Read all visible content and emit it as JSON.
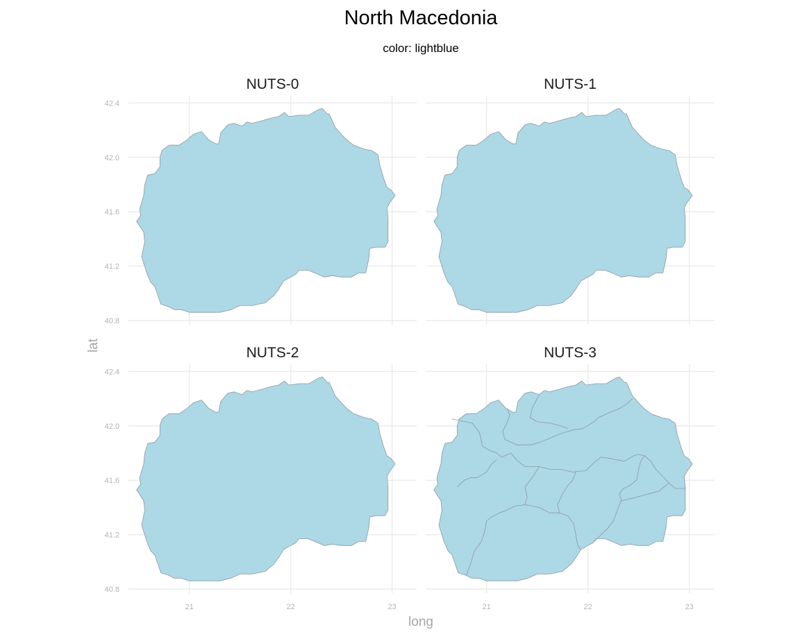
{
  "title": "North Macedonia",
  "subtitle": "color: lightblue",
  "chart_data": {
    "type": "map",
    "fill_color": "#add8e6",
    "border_color": "#8c9aa0",
    "xlabel": "long",
    "ylabel": "lat",
    "xlim": [
      20.4,
      23.1
    ],
    "ylim": [
      40.8,
      42.45
    ],
    "x_ticks": [
      {
        "value": 21,
        "label": "21"
      },
      {
        "value": 22,
        "label": "22"
      },
      {
        "value": 23,
        "label": "23"
      }
    ],
    "y_ticks": [
      {
        "value": 40.8,
        "label": "40.8"
      },
      {
        "value": 41.2,
        "label": "41.2"
      },
      {
        "value": 41.6,
        "label": "41.6"
      },
      {
        "value": 42.0,
        "label": "42.0"
      },
      {
        "value": 42.4,
        "label": "42.4"
      }
    ],
    "grid": true,
    "panels": [
      {
        "title": "NUTS-0",
        "regions": 1
      },
      {
        "title": "NUTS-1",
        "regions": 1
      },
      {
        "title": "NUTS-2",
        "regions": 1
      },
      {
        "title": "NUTS-3",
        "regions": 8
      }
    ],
    "outline": [
      [
        21.41,
        40.88
      ],
      [
        21.5,
        40.91
      ],
      [
        21.62,
        40.91
      ],
      [
        21.75,
        40.93
      ],
      [
        21.78,
        40.95
      ],
      [
        21.83,
        40.98
      ],
      [
        21.88,
        41.03
      ],
      [
        21.93,
        41.09
      ],
      [
        22.0,
        41.12
      ],
      [
        22.05,
        41.14
      ],
      [
        22.08,
        41.17
      ],
      [
        22.17,
        41.17
      ],
      [
        22.27,
        41.14
      ],
      [
        22.33,
        41.12
      ],
      [
        22.41,
        41.13
      ],
      [
        22.5,
        41.12
      ],
      [
        22.6,
        41.12
      ],
      [
        22.67,
        41.15
      ],
      [
        22.74,
        41.15
      ],
      [
        22.77,
        41.25
      ],
      [
        22.78,
        41.33
      ],
      [
        22.84,
        41.34
      ],
      [
        22.93,
        41.34
      ],
      [
        22.96,
        41.38
      ],
      [
        22.96,
        41.55
      ],
      [
        22.95,
        41.63
      ],
      [
        22.98,
        41.67
      ],
      [
        23.03,
        41.72
      ],
      [
        22.99,
        41.76
      ],
      [
        22.95,
        41.78
      ],
      [
        22.92,
        41.84
      ],
      [
        22.88,
        41.94
      ],
      [
        22.86,
        42.02
      ],
      [
        22.8,
        42.05
      ],
      [
        22.73,
        42.06
      ],
      [
        22.62,
        42.09
      ],
      [
        22.55,
        42.13
      ],
      [
        22.5,
        42.17
      ],
      [
        22.44,
        42.22
      ],
      [
        22.38,
        42.32
      ],
      [
        22.36,
        42.32
      ],
      [
        22.31,
        42.36
      ],
      [
        22.27,
        42.35
      ],
      [
        22.18,
        42.31
      ],
      [
        22.08,
        42.31
      ],
      [
        21.98,
        42.3
      ],
      [
        21.94,
        42.33
      ],
      [
        21.88,
        42.3
      ],
      [
        21.81,
        42.29
      ],
      [
        21.72,
        42.27
      ],
      [
        21.62,
        42.25
      ],
      [
        21.57,
        42.26
      ],
      [
        21.52,
        42.23
      ],
      [
        21.44,
        42.25
      ],
      [
        21.38,
        42.24
      ],
      [
        21.31,
        42.18
      ],
      [
        21.29,
        42.1
      ],
      [
        21.26,
        42.1
      ],
      [
        21.19,
        42.13
      ],
      [
        21.12,
        42.19
      ],
      [
        21.04,
        42.17
      ],
      [
        20.98,
        42.13
      ],
      [
        20.9,
        42.09
      ],
      [
        20.8,
        42.09
      ],
      [
        20.73,
        42.05
      ],
      [
        20.71,
        42.0
      ],
      [
        20.71,
        41.93
      ],
      [
        20.66,
        41.88
      ],
      [
        20.59,
        41.87
      ],
      [
        20.56,
        41.8
      ],
      [
        20.55,
        41.72
      ],
      [
        20.51,
        41.62
      ],
      [
        20.52,
        41.57
      ],
      [
        20.48,
        41.53
      ],
      [
        20.55,
        41.45
      ],
      [
        20.56,
        41.38
      ],
      [
        20.53,
        41.27
      ],
      [
        20.58,
        41.15
      ],
      [
        20.62,
        41.08
      ],
      [
        20.66,
        41.05
      ],
      [
        20.72,
        40.92
      ],
      [
        20.8,
        40.9
      ],
      [
        20.85,
        40.88
      ],
      [
        20.92,
        40.88
      ],
      [
        21.0,
        40.86
      ],
      [
        21.1,
        40.86
      ],
      [
        21.2,
        40.86
      ],
      [
        21.3,
        40.86
      ],
      [
        21.41,
        40.88
      ]
    ],
    "nuts3_internal_borders": [
      [
        [
          20.66,
          42.05
        ],
        [
          20.86,
          42.02
        ],
        [
          20.93,
          41.95
        ],
        [
          20.96,
          41.85
        ],
        [
          21.03,
          41.82
        ],
        [
          21.1,
          41.8
        ],
        [
          21.15,
          41.77
        ],
        [
          21.24,
          41.8
        ],
        [
          21.31,
          41.74
        ],
        [
          21.38,
          41.7
        ],
        [
          21.52,
          41.7
        ],
        [
          21.63,
          41.68
        ],
        [
          21.73,
          41.68
        ],
        [
          21.85,
          41.66
        ],
        [
          21.98,
          41.67
        ],
        [
          22.06,
          41.73
        ],
        [
          22.13,
          41.77
        ],
        [
          22.22,
          41.76
        ],
        [
          22.36,
          41.74
        ],
        [
          22.45,
          41.78
        ],
        [
          22.5,
          41.79
        ],
        [
          22.56,
          41.78
        ],
        [
          22.62,
          41.74
        ],
        [
          22.67,
          41.68
        ],
        [
          22.71,
          41.65
        ],
        [
          22.8,
          41.58
        ],
        [
          22.86,
          41.54
        ],
        [
          22.97,
          41.54
        ]
      ],
      [
        [
          21.2,
          42.13
        ],
        [
          21.23,
          42.08
        ],
        [
          21.2,
          42.02
        ],
        [
          21.16,
          41.96
        ],
        [
          21.18,
          41.9
        ],
        [
          21.3,
          41.86
        ],
        [
          21.38,
          41.86
        ],
        [
          21.44,
          41.86
        ],
        [
          21.53,
          41.88
        ],
        [
          21.63,
          41.91
        ],
        [
          21.72,
          41.94
        ],
        [
          21.85,
          41.97
        ],
        [
          21.95,
          41.98
        ],
        [
          22.06,
          42.03
        ],
        [
          22.1,
          42.06
        ],
        [
          22.22,
          42.1
        ],
        [
          22.32,
          42.13
        ],
        [
          22.38,
          42.16
        ],
        [
          22.44,
          42.2
        ]
      ],
      [
        [
          21.52,
          42.23
        ],
        [
          21.45,
          42.13
        ],
        [
          21.43,
          42.06
        ],
        [
          21.5,
          42.03
        ],
        [
          21.63,
          42.02
        ],
        [
          21.73,
          42.0
        ],
        [
          21.8,
          41.98
        ]
      ],
      [
        [
          20.71,
          41.55
        ],
        [
          20.78,
          41.6
        ],
        [
          20.85,
          41.62
        ],
        [
          20.91,
          41.62
        ],
        [
          21.0,
          41.66
        ],
        [
          21.05,
          41.72
        ],
        [
          21.1,
          41.75
        ]
      ],
      [
        [
          21.52,
          41.7
        ],
        [
          21.45,
          41.62
        ],
        [
          21.38,
          41.55
        ],
        [
          21.4,
          41.48
        ],
        [
          21.38,
          41.42
        ],
        [
          21.28,
          41.41
        ],
        [
          21.2,
          41.38
        ],
        [
          21.13,
          41.36
        ],
        [
          21.05,
          41.33
        ],
        [
          21.0,
          41.3
        ],
        [
          20.98,
          41.22
        ],
        [
          20.95,
          41.15
        ],
        [
          20.88,
          41.08
        ],
        [
          20.85,
          41.0
        ],
        [
          20.8,
          40.9
        ]
      ],
      [
        [
          21.38,
          41.42
        ],
        [
          21.52,
          41.4
        ],
        [
          21.62,
          41.36
        ],
        [
          21.72,
          41.36
        ],
        [
          21.8,
          41.34
        ],
        [
          21.86,
          41.28
        ],
        [
          21.88,
          41.2
        ],
        [
          21.9,
          41.12
        ],
        [
          21.93,
          41.09
        ]
      ],
      [
        [
          21.72,
          41.36
        ],
        [
          21.7,
          41.42
        ],
        [
          21.75,
          41.5
        ],
        [
          21.8,
          41.56
        ],
        [
          21.85,
          41.6
        ],
        [
          21.88,
          41.66
        ]
      ],
      [
        [
          22.05,
          41.14
        ],
        [
          22.13,
          41.2
        ],
        [
          22.2,
          41.25
        ],
        [
          22.25,
          41.3
        ],
        [
          22.3,
          41.4
        ],
        [
          22.33,
          41.45
        ],
        [
          22.31,
          41.5
        ],
        [
          22.35,
          41.54
        ],
        [
          22.41,
          41.56
        ],
        [
          22.48,
          41.6
        ],
        [
          22.5,
          41.68
        ],
        [
          22.52,
          41.74
        ],
        [
          22.56,
          41.78
        ]
      ],
      [
        [
          22.33,
          41.45
        ],
        [
          22.45,
          41.47
        ],
        [
          22.6,
          41.5
        ],
        [
          22.7,
          41.52
        ],
        [
          22.8,
          41.58
        ]
      ]
    ]
  }
}
